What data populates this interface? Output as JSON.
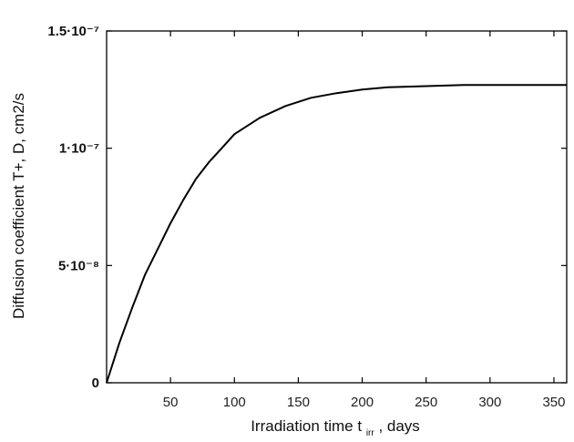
{
  "chart_data": {
    "type": "line",
    "title": "",
    "xlabel": "Irradiation time t",
    "xlabel_sub": "irr",
    "xlabel_unit": ", days",
    "ylabel": "Diffusion coefficient T+, D, cm2/s",
    "xlim": [
      0,
      360
    ],
    "ylim": [
      0,
      1.5e-07
    ],
    "grid": false,
    "x_ticks": [
      {
        "value": 50,
        "label": "50"
      },
      {
        "value": 100,
        "label": "100"
      },
      {
        "value": 150,
        "label": "150"
      },
      {
        "value": 200,
        "label": "200"
      },
      {
        "value": 250,
        "label": "250"
      },
      {
        "value": 300,
        "label": "300"
      },
      {
        "value": 350,
        "label": "350"
      }
    ],
    "y_ticks": [
      {
        "value": 0,
        "label": "0"
      },
      {
        "value": 5e-08,
        "label": "5·10⁻⁸"
      },
      {
        "value": 1e-07,
        "label": "1·10⁻⁷"
      },
      {
        "value": 1.5e-07,
        "label": "1.5·10⁻⁷"
      }
    ],
    "series": [
      {
        "color": "#000000",
        "x": [
          0,
          10,
          20,
          30,
          40,
          50,
          60,
          70,
          80,
          90,
          100,
          120,
          140,
          160,
          180,
          200,
          220,
          250,
          280,
          300,
          330,
          360
        ],
        "y": [
          0,
          1.7e-08,
          3.2e-08,
          4.6e-08,
          5.7e-08,
          6.8e-08,
          7.8e-08,
          8.7e-08,
          9.4e-08,
          1e-07,
          1.06e-07,
          1.13e-07,
          1.18e-07,
          1.215e-07,
          1.235e-07,
          1.25e-07,
          1.26e-07,
          1.265e-07,
          1.27e-07,
          1.27e-07,
          1.27e-07,
          1.27e-07
        ]
      }
    ]
  }
}
